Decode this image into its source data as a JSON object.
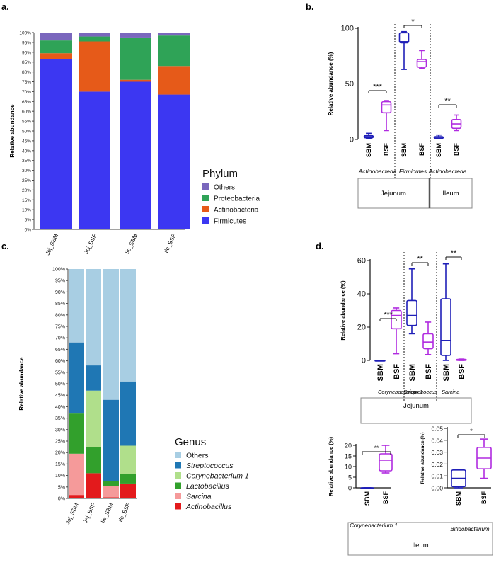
{
  "panel_labels": {
    "a": "a.",
    "b": "b.",
    "c": "c.",
    "d": "d."
  },
  "colors": {
    "firmicutes": "#3c37f2",
    "actinobacteria": "#e65a19",
    "proteobacteria": "#2fa357",
    "others_phylum": "#7a67bd",
    "others_genus": "#a8cee3",
    "streptococcus": "#1f77b4",
    "corynebacterium": "#b0df8b",
    "lactobacillus": "#32a02c",
    "sarcina": "#f59a9a",
    "actinobacillus": "#e31a1c",
    "sbm": "#1f1fb8",
    "bsf": "#b02be0"
  },
  "chart_data": [
    {
      "id": "a",
      "type": "bar",
      "stacked": true,
      "ylabel": "Relative abundance",
      "yticks": [
        "0%",
        "5%",
        "10%",
        "15%",
        "20%",
        "25%",
        "30%",
        "35%",
        "40%",
        "45%",
        "50%",
        "55%",
        "60%",
        "65%",
        "70%",
        "75%",
        "80%",
        "85%",
        "90%",
        "95%",
        "100%"
      ],
      "ylim": [
        0,
        100
      ],
      "categories": [
        "Jej_SBM",
        "Jej_BSF",
        "Ile_SBM",
        "Ile_BSF"
      ],
      "series": [
        {
          "name": "Firmicutes",
          "color": "#3c37f2",
          "values": [
            86.5,
            70,
            75,
            68.5
          ]
        },
        {
          "name": "Actinobacteria",
          "color": "#e65a19",
          "values": [
            3,
            25.5,
            1,
            14.5
          ]
        },
        {
          "name": "Proteobacteria",
          "color": "#2fa357",
          "values": [
            6.5,
            2.5,
            21.5,
            15.5
          ]
        },
        {
          "name": "Others",
          "color": "#7a67bd",
          "values": [
            4,
            2,
            2.5,
            1.5
          ]
        }
      ],
      "legend_title": "Phylum",
      "legend": [
        "Others",
        "Proteobacteria",
        "Actinobacteria",
        "Firmicutes"
      ]
    },
    {
      "id": "b",
      "type": "box",
      "ylabel": "Relative abundance (%)",
      "yticks": [
        "0",
        "50",
        "100"
      ],
      "ylim": [
        0,
        100
      ],
      "groups": [
        {
          "taxon": "Actinobacteria",
          "sig": "***",
          "boxes": [
            {
              "label": "SBM",
              "color": "#1f1fb8",
              "min": 0.5,
              "q1": 1.5,
              "median": 2.5,
              "q3": 3.5,
              "max": 5.5
            },
            {
              "label": "BSF",
              "color": "#b02be0",
              "min": 8,
              "q1": 24,
              "median": 31,
              "q3": 34,
              "max": 35
            }
          ]
        },
        {
          "taxon": "Firmicutes",
          "sig": "*",
          "boxes": [
            {
              "label": "SBM",
              "color": "#1f1fb8",
              "min": 63,
              "q1": 87,
              "median": 88,
              "q3": 96,
              "max": 97
            },
            {
              "label": "BSF",
              "color": "#b02be0",
              "min": 64,
              "q1": 65,
              "median": 70,
              "q3": 72,
              "max": 80
            }
          ]
        },
        {
          "taxon": "Actinobacteria",
          "sig": "**",
          "boxes": [
            {
              "label": "SBM",
              "color": "#1f1fb8",
              "min": 0.5,
              "q1": 1,
              "median": 2,
              "q3": 2.5,
              "max": 4
            },
            {
              "label": "BSF",
              "color": "#b02be0",
              "min": 8,
              "q1": 10,
              "median": 14,
              "q3": 18,
              "max": 22
            }
          ]
        }
      ],
      "sections": [
        "Jejunum",
        "Ileum"
      ]
    },
    {
      "id": "c",
      "type": "bar",
      "stacked": true,
      "ylabel": "Relative abundance",
      "yticks": [
        "0%",
        "5%",
        "10%",
        "15%",
        "20%",
        "25%",
        "30%",
        "35%",
        "40%",
        "45%",
        "50%",
        "55%",
        "60%",
        "65%",
        "70%",
        "75%",
        "80%",
        "85%",
        "90%",
        "95%",
        "100%"
      ],
      "ylim": [
        0,
        100
      ],
      "categories": [
        "Jej_SBM",
        "Jej_BSF",
        "Ile_SBM",
        "Ile_BSF"
      ],
      "series": [
        {
          "name": "Actinobacillus",
          "color": "#e31a1c",
          "values": [
            1.5,
            11,
            0.5,
            6.5
          ]
        },
        {
          "name": "Sarcina",
          "color": "#f59a9a",
          "values": [
            18,
            0,
            5,
            0
          ]
        },
        {
          "name": "Lactobacillus",
          "color": "#32a02c",
          "values": [
            17.5,
            11.5,
            2,
            4
          ]
        },
        {
          "name": "Corynebacterium 1",
          "color": "#b0df8b",
          "values": [
            0,
            24.5,
            0,
            12.5
          ]
        },
        {
          "name": "Streptococcus",
          "color": "#1f77b4",
          "values": [
            31,
            11,
            35.5,
            28
          ]
        },
        {
          "name": "Others",
          "color": "#a8cee3",
          "values": [
            32,
            42,
            57,
            49
          ]
        }
      ],
      "legend_title": "Genus",
      "legend": [
        "Others",
        "Streptococcus",
        "Corynebacterium 1",
        "Lactobacillus",
        "Sarcina",
        "Actinobacillus"
      ]
    },
    {
      "id": "d_top",
      "type": "box",
      "ylabel": "Relative abundance (%)",
      "yticks": [
        "0",
        "20",
        "40",
        "60"
      ],
      "ylim": [
        0,
        60
      ],
      "groups": [
        {
          "taxon": "Corynebacterium 1",
          "sig": "***",
          "boxes": [
            {
              "label": "SBM",
              "color": "#1f1fb8",
              "min": 0,
              "q1": 0,
              "median": 0,
              "q3": 0,
              "max": 0
            },
            {
              "label": "BSF",
              "color": "#b02be0",
              "min": 4,
              "q1": 19,
              "median": 27,
              "q3": 30,
              "max": 31.5
            }
          ]
        },
        {
          "taxon": "Streptococcus",
          "sig": "**",
          "boxes": [
            {
              "label": "SBM",
              "color": "#1f1fb8",
              "min": 16,
              "q1": 21,
              "median": 27,
              "q3": 36,
              "max": 55
            },
            {
              "label": "BSF",
              "color": "#b02be0",
              "min": 3.5,
              "q1": 7,
              "median": 11,
              "q3": 16,
              "max": 23
            }
          ]
        },
        {
          "taxon": "Sarcina",
          "sig": "**",
          "boxes": [
            {
              "label": "SBM",
              "color": "#1f1fb8",
              "min": 0,
              "q1": 3,
              "median": 12,
              "q3": 37,
              "max": 58
            },
            {
              "label": "BSF",
              "color": "#b02be0",
              "min": 0,
              "q1": 0,
              "median": 0.3,
              "q3": 0.6,
              "max": 0.8
            }
          ]
        }
      ],
      "section": "Jejunum"
    },
    {
      "id": "d_bottom_left",
      "type": "box",
      "ylabel": "Relative abundance (%)",
      "yticks": [
        "0",
        "5",
        "10",
        "15",
        "20"
      ],
      "ylim": [
        0,
        20
      ],
      "taxon": "Corynebacterium 1",
      "sig": "**",
      "boxes": [
        {
          "label": "SBM",
          "color": "#1f1fb8",
          "min": 0,
          "q1": 0,
          "median": 0,
          "q3": 0,
          "max": 0
        },
        {
          "label": "BSF",
          "color": "#b02be0",
          "min": 7,
          "q1": 8,
          "median": 13,
          "q3": 16,
          "max": 20
        }
      ]
    },
    {
      "id": "d_bottom_right",
      "type": "box",
      "ylabel": "Relative abundance (%)",
      "yticks": [
        "0.00",
        "0.01",
        "0.02",
        "0.03",
        "0.04",
        "0.05"
      ],
      "ylim": [
        0,
        0.05
      ],
      "taxon": "Bifidobacterium",
      "sig": "*",
      "boxes": [
        {
          "label": "SBM",
          "color": "#1f1fb8",
          "min": 0,
          "q1": 0.001,
          "median": 0.008,
          "q3": 0.015,
          "max": 0.0155
        },
        {
          "label": "BSF",
          "color": "#b02be0",
          "min": 0.008,
          "q1": 0.016,
          "median": 0.025,
          "q3": 0.034,
          "max": 0.041
        }
      ],
      "section": "Ileum"
    }
  ]
}
